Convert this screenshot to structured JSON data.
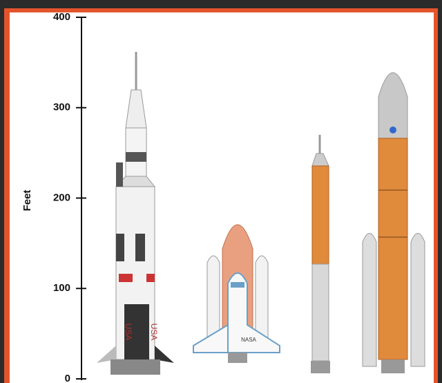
{
  "y_axis": {
    "label": "Feet",
    "range": [
      0,
      400
    ],
    "ticks": [
      0,
      100,
      200,
      300,
      400
    ]
  },
  "rocket_labels": [
    "USA",
    "USA",
    "NASA"
  ]
}
